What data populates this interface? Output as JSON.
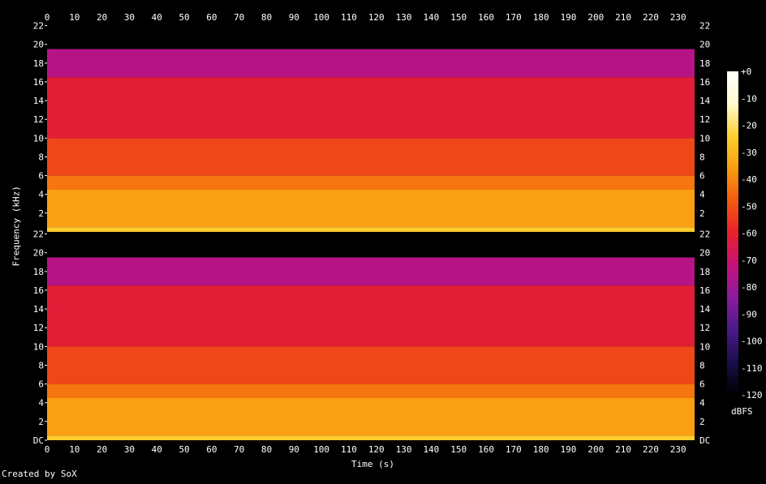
{
  "credit": "Created by SoX",
  "chart_data": {
    "type": "heatmap",
    "title": "",
    "xlabel": "Time (s)",
    "ylabel": "Frequency (kHz)",
    "xlim": [
      0,
      236
    ],
    "ylim": [
      0,
      22.05
    ],
    "x_ticks": [
      "0",
      "10",
      "20",
      "30",
      "40",
      "50",
      "60",
      "70",
      "80",
      "90",
      "100",
      "110",
      "120",
      "130",
      "140",
      "150",
      "160",
      "170",
      "180",
      "190",
      "200",
      "210",
      "220",
      "230"
    ],
    "y_ticks": [
      "DC",
      "2",
      "4",
      "6",
      "8",
      "10",
      "12",
      "14",
      "16",
      "18",
      "20",
      "22"
    ],
    "channels": 2,
    "colorbar": {
      "label": "dBFS",
      "range": [
        -120,
        0
      ],
      "ticks": [
        "+0",
        "-10",
        "-20",
        "-30",
        "-40",
        "-50",
        "-60",
        "-70",
        "-80",
        "-90",
        "-100",
        "-110",
        "-120"
      ]
    },
    "frequency_bands_dbfs": [
      {
        "from_khz": 0,
        "to_khz": 0.5,
        "level": -25
      },
      {
        "from_khz": 0.5,
        "to_khz": 4.5,
        "level": -35
      },
      {
        "from_khz": 4.5,
        "to_khz": 6,
        "level": -43
      },
      {
        "from_khz": 6,
        "to_khz": 10,
        "level": -52
      },
      {
        "from_khz": 10,
        "to_khz": 16.5,
        "level": -62
      },
      {
        "from_khz": 16.5,
        "to_khz": 19.5,
        "level": -75
      },
      {
        "from_khz": 19.5,
        "to_khz": 22.05,
        "level": -125
      }
    ],
    "colors": {
      "background": "#000000",
      "text": "#ffffff",
      "colormap": [
        "#000000",
        "#1a0d4a",
        "#4a1a8c",
        "#8c1aa0",
        "#c4127a",
        "#e8202a",
        "#f25a10",
        "#fa9c10",
        "#fdd030",
        "#fffbd0",
        "#ffffff"
      ]
    }
  }
}
